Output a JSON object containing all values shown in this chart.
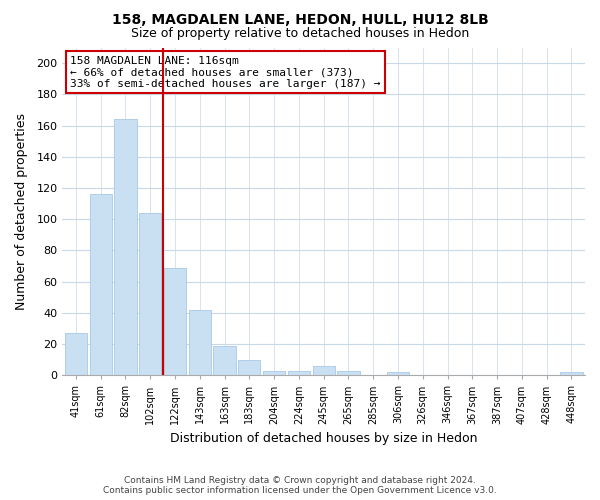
{
  "title": "158, MAGDALEN LANE, HEDON, HULL, HU12 8LB",
  "subtitle": "Size of property relative to detached houses in Hedon",
  "xlabel": "Distribution of detached houses by size in Hedon",
  "ylabel": "Number of detached properties",
  "bar_labels": [
    "41sqm",
    "61sqm",
    "82sqm",
    "102sqm",
    "122sqm",
    "143sqm",
    "163sqm",
    "183sqm",
    "204sqm",
    "224sqm",
    "245sqm",
    "265sqm",
    "285sqm",
    "306sqm",
    "326sqm",
    "346sqm",
    "367sqm",
    "387sqm",
    "407sqm",
    "428sqm",
    "448sqm"
  ],
  "bar_values": [
    27,
    116,
    164,
    104,
    69,
    42,
    19,
    10,
    3,
    3,
    6,
    3,
    0,
    2,
    0,
    0,
    0,
    0,
    0,
    0,
    2
  ],
  "bar_color": "#c9dff2",
  "bar_edge_color": "#a8c8e8",
  "vline_color": "#cc0000",
  "vline_index": 3.5,
  "ylim": [
    0,
    210
  ],
  "yticks": [
    0,
    20,
    40,
    60,
    80,
    100,
    120,
    140,
    160,
    180,
    200
  ],
  "annotation_title": "158 MAGDALEN LANE: 116sqm",
  "annotation_line1": "← 66% of detached houses are smaller (373)",
  "annotation_line2": "33% of semi-detached houses are larger (187) →",
  "annotation_box_color": "#ffffff",
  "annotation_box_edge": "#cc0000",
  "footer_line1": "Contains HM Land Registry data © Crown copyright and database right 2024.",
  "footer_line2": "Contains public sector information licensed under the Open Government Licence v3.0.",
  "background_color": "#ffffff",
  "grid_color": "#c8d8e8",
  "title_fontsize": 10,
  "subtitle_fontsize": 9
}
